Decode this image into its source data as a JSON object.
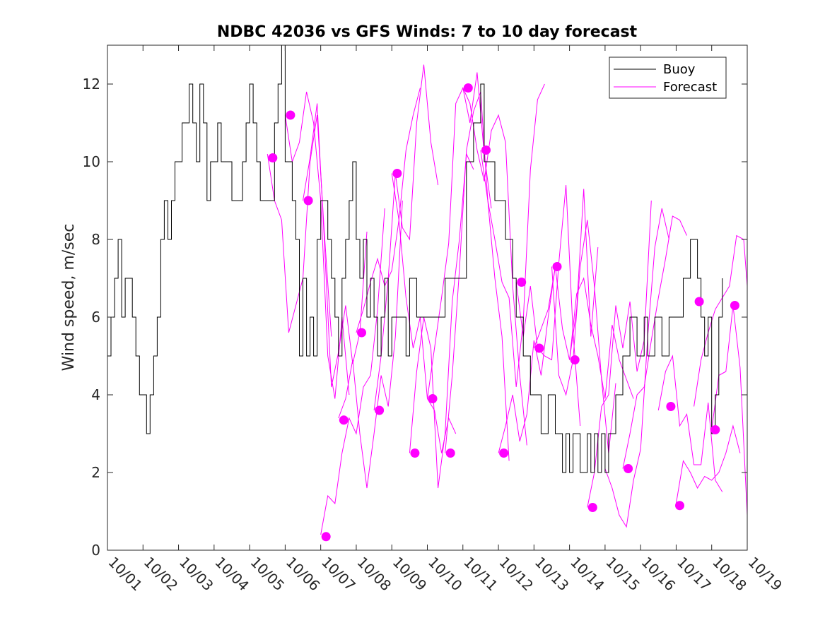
{
  "colors": {
    "buoy": "#000000",
    "forecast": "#ff00ff",
    "axis": "#262626",
    "background": "#ffffff"
  },
  "chart_data": {
    "type": "line",
    "title": "NDBC 42036 vs GFS Winds: 7 to 10 day forecast",
    "xlabel": "",
    "ylabel": "Wind speed, m/sec",
    "xlim": [
      0,
      18
    ],
    "ylim": [
      0,
      13
    ],
    "xticks": [
      0,
      1,
      2,
      3,
      4,
      5,
      6,
      7,
      8,
      9,
      10,
      11,
      12,
      13,
      14,
      15,
      16,
      17,
      18
    ],
    "xticklabels": [
      "10/01",
      "10/02",
      "10/03",
      "10/04",
      "10/05",
      "10/06",
      "10/07",
      "10/08",
      "10/09",
      "10/10",
      "10/11",
      "10/12",
      "10/13",
      "10/14",
      "10/15",
      "10/16",
      "10/17",
      "10/18",
      "10/19"
    ],
    "yticks": [
      0,
      2,
      4,
      6,
      8,
      10,
      12
    ],
    "legend": {
      "position": "top-right",
      "entries": [
        "Buoy",
        "Forecast"
      ]
    },
    "buoy": {
      "name": "Buoy",
      "x": [
        0.0,
        0.1,
        0.2,
        0.3,
        0.4,
        0.5,
        0.6,
        0.7,
        0.8,
        0.9,
        1.0,
        1.1,
        1.2,
        1.3,
        1.4,
        1.5,
        1.6,
        1.7,
        1.8,
        1.9,
        2.0,
        2.1,
        2.2,
        2.3,
        2.4,
        2.5,
        2.6,
        2.7,
        2.8,
        2.9,
        3.0,
        3.1,
        3.2,
        3.3,
        3.4,
        3.5,
        3.6,
        3.7,
        3.8,
        3.9,
        4.0,
        4.1,
        4.2,
        4.3,
        4.4,
        4.5,
        4.6,
        4.7,
        4.8,
        4.9,
        5.0,
        5.1,
        5.2,
        5.3,
        5.4,
        5.5,
        5.6,
        5.7,
        5.8,
        5.9,
        6.0,
        6.1,
        6.2,
        6.3,
        6.4,
        6.5,
        6.6,
        6.7,
        6.8,
        6.9,
        7.0,
        7.1,
        7.2,
        7.3,
        7.4,
        7.5,
        7.6,
        7.7,
        7.8,
        7.9,
        8.0,
        8.1,
        8.2,
        8.3,
        8.4,
        8.5,
        8.6,
        8.7,
        8.8,
        8.9,
        9.0,
        9.5,
        10.0,
        10.1,
        10.2,
        10.3,
        10.4,
        10.5,
        10.6,
        10.7,
        10.8,
        10.9,
        11.0,
        11.1,
        11.2,
        11.3,
        11.4,
        11.5,
        11.6,
        11.7,
        11.8,
        11.9,
        12.0,
        12.1,
        12.2,
        12.3,
        12.4,
        12.5,
        12.6,
        12.7,
        12.8,
        12.9,
        13.0,
        13.1,
        13.2,
        13.3,
        13.4,
        13.5,
        13.6,
        13.7,
        13.8,
        13.9,
        14.0,
        14.1,
        14.2,
        14.3,
        14.4,
        14.5,
        14.6,
        14.7,
        14.8,
        14.9,
        15.0,
        15.1,
        15.2,
        15.3,
        15.4,
        15.5,
        15.6,
        15.7,
        15.8,
        15.9,
        16.0,
        16.1,
        16.2,
        16.3,
        16.4,
        16.5,
        16.6,
        16.7,
        16.8,
        16.9,
        17.0,
        17.1,
        17.2,
        17.3
      ],
      "values": [
        5,
        6,
        7,
        8,
        6,
        7,
        7,
        6,
        5,
        4,
        4,
        3,
        4,
        5,
        6,
        8,
        9,
        8,
        9,
        10,
        10,
        11,
        11,
        12,
        11,
        10,
        12,
        11,
        9,
        10,
        10,
        11,
        10,
        10,
        10,
        9,
        9,
        9,
        10,
        11,
        12,
        11,
        10,
        9,
        9,
        9,
        9,
        11,
        12,
        13,
        10,
        10,
        9,
        8,
        5,
        7,
        5,
        6,
        5,
        8,
        9,
        9,
        8,
        7,
        6,
        5,
        7,
        8,
        9,
        10,
        8,
        7,
        8,
        6,
        7,
        6,
        5,
        6,
        7,
        5,
        6,
        6,
        6,
        6,
        5,
        7,
        7,
        6,
        6,
        6,
        6,
        7,
        7,
        10,
        10,
        11,
        11,
        12,
        10,
        10,
        10,
        9,
        9,
        9,
        8,
        8,
        7,
        6,
        6,
        5,
        5,
        4,
        4,
        4,
        3,
        3,
        4,
        4,
        3,
        3,
        2,
        3,
        2,
        3,
        3,
        2,
        2,
        3,
        2,
        3,
        2,
        3,
        2,
        3,
        3,
        4,
        4,
        5,
        5,
        6,
        6,
        5,
        5,
        6,
        5,
        5,
        6,
        6,
        5,
        5,
        6,
        6,
        6,
        6,
        7,
        7,
        8,
        8,
        7,
        6,
        5,
        6,
        3,
        4,
        6,
        7
      ]
    },
    "forecast_lines": [
      {
        "name": "Forecast",
        "x": [
          4.5,
          4.7,
          4.9,
          5.1,
          5.3,
          5.5,
          5.7,
          5.9,
          6.1,
          6.3
        ],
        "values": [
          10.2,
          9.0,
          8.5,
          5.6,
          6.3,
          7.0,
          10.0,
          11.2,
          8.2,
          5.5
        ]
      },
      {
        "name": "Forecast",
        "x": [
          5.0,
          5.2,
          5.4,
          5.6,
          5.8,
          6.0,
          6.2,
          6.4,
          6.6,
          6.8
        ],
        "values": [
          11.2,
          10.0,
          10.5,
          11.8,
          11.0,
          9.0,
          5.0,
          3.9,
          6.0,
          4.0
        ]
      },
      {
        "name": "Forecast",
        "x": [
          5.5,
          5.7,
          5.9,
          6.1,
          6.3,
          6.5,
          6.7,
          6.9,
          7.1,
          7.3
        ],
        "values": [
          9.0,
          10.1,
          11.5,
          8.0,
          4.2,
          5.1,
          6.3,
          4.8,
          5.6,
          8.2
        ]
      },
      {
        "name": "Forecast",
        "x": [
          6.0,
          6.2,
          6.4,
          6.6,
          6.8,
          7.0,
          7.2,
          7.4,
          7.6,
          7.8
        ],
        "values": [
          0.4,
          1.4,
          1.2,
          2.5,
          3.4,
          3.0,
          4.2,
          4.5,
          6.2,
          8.8
        ]
      },
      {
        "name": "Forecast",
        "x": [
          6.5,
          6.7,
          6.9,
          7.1,
          7.3,
          7.5,
          7.7,
          7.9,
          8.1,
          8.3
        ],
        "values": [
          3.4,
          3.9,
          4.9,
          3.0,
          1.6,
          3.0,
          4.5,
          3.7,
          5.5,
          9.0
        ]
      },
      {
        "name": "Forecast",
        "x": [
          7.0,
          7.2,
          7.4,
          7.6,
          7.8,
          8.0,
          8.2,
          8.4,
          8.6,
          8.8
        ],
        "values": [
          5.6,
          6.2,
          6.9,
          7.5,
          6.8,
          7.2,
          8.5,
          10.3,
          11.2,
          11.9
        ]
      },
      {
        "name": "Forecast",
        "x": [
          7.5,
          7.7,
          7.9,
          8.1,
          8.3,
          8.5,
          8.7,
          8.9,
          9.1,
          9.3
        ],
        "values": [
          3.6,
          5.0,
          7.0,
          9.7,
          8.3,
          8.0,
          11.0,
          12.5,
          10.5,
          9.4
        ]
      },
      {
        "name": "Forecast",
        "x": [
          8.0,
          8.2,
          8.4,
          8.6,
          8.8,
          9.0,
          9.2,
          9.4,
          9.6,
          9.8
        ],
        "values": [
          9.7,
          8.5,
          6.5,
          5.2,
          6.0,
          3.9,
          3.6,
          2.5,
          3.4,
          3.0
        ]
      },
      {
        "name": "Forecast",
        "x": [
          8.5,
          8.7,
          8.9,
          9.1,
          9.3,
          9.5,
          9.7,
          9.9,
          10.1,
          10.3
        ],
        "values": [
          2.5,
          4.6,
          6.0,
          5.2,
          1.6,
          3.0,
          6.4,
          8.0,
          10.2,
          9.8
        ]
      },
      {
        "name": "Forecast",
        "x": [
          9.0,
          9.2,
          9.4,
          9.6,
          9.8,
          10.0,
          10.2,
          10.4,
          10.6,
          10.8
        ],
        "values": [
          3.9,
          5.2,
          6.5,
          7.9,
          11.5,
          11.9,
          11.0,
          12.3,
          10.2,
          8.8
        ]
      },
      {
        "name": "Forecast",
        "x": [
          9.5,
          9.7,
          9.9,
          10.1,
          10.3,
          10.5,
          10.7,
          10.9,
          11.1,
          11.3
        ],
        "values": [
          2.5,
          4.5,
          7.2,
          10.3,
          11.3,
          11.8,
          9.0,
          7.0,
          5.5,
          2.3
        ]
      },
      {
        "name": "Forecast",
        "x": [
          10.0,
          10.2,
          10.4,
          10.6,
          10.8,
          11.0,
          11.2,
          11.4,
          11.6,
          11.8
        ],
        "values": [
          11.9,
          11.5,
          10.3,
          9.5,
          10.8,
          11.2,
          10.5,
          6.8,
          4.5,
          2.7
        ]
      },
      {
        "name": "Forecast",
        "x": [
          10.5,
          10.7,
          10.9,
          11.1,
          11.3,
          11.5,
          11.7,
          11.9,
          12.1,
          12.3
        ],
        "values": [
          10.3,
          9.0,
          8.0,
          6.9,
          6.5,
          4.2,
          5.9,
          9.8,
          11.6,
          12.0
        ]
      },
      {
        "name": "Forecast",
        "x": [
          11.0,
          11.2,
          11.4,
          11.6,
          11.8,
          12.0,
          12.2,
          12.4,
          12.6
        ],
        "values": [
          2.5,
          3.2,
          4.0,
          2.8,
          3.5,
          5.4,
          4.5,
          6.0,
          7.3
        ]
      },
      {
        "name": "Forecast",
        "x": [
          11.5,
          11.7,
          11.9,
          12.1,
          12.3,
          12.5,
          12.7,
          12.9,
          13.1,
          13.3
        ],
        "values": [
          6.9,
          5.5,
          6.8,
          5.2,
          5.0,
          4.9,
          7.4,
          9.4,
          5.6,
          3.2
        ]
      },
      {
        "name": "Forecast",
        "x": [
          12.0,
          12.2,
          12.4,
          12.6,
          12.8,
          13.0,
          13.2,
          13.4,
          13.6,
          13.8
        ],
        "values": [
          5.2,
          5.7,
          6.2,
          7.3,
          5.7,
          4.9,
          6.2,
          9.3,
          5.5,
          7.8
        ]
      },
      {
        "name": "Forecast",
        "x": [
          12.5,
          12.7,
          12.9,
          13.1,
          13.3,
          13.5,
          13.7,
          13.9,
          14.1,
          14.3
        ],
        "values": [
          7.3,
          4.5,
          4.0,
          4.9,
          7.3,
          8.5,
          6.8,
          4.4,
          2.5,
          4.3
        ]
      },
      {
        "name": "Forecast",
        "x": [
          13.0,
          13.2,
          13.4,
          13.6,
          13.8,
          14.0,
          14.2,
          14.4,
          14.6,
          14.8
        ],
        "values": [
          4.9,
          6.6,
          7.0,
          5.8,
          5.0,
          3.9,
          5.8,
          4.9,
          4.4,
          3.9
        ]
      },
      {
        "name": "Forecast",
        "x": [
          13.5,
          13.7,
          13.9,
          14.1,
          14.3,
          14.5,
          14.7,
          14.9,
          15.1,
          15.3
        ],
        "values": [
          1.1,
          2.0,
          3.7,
          4.0,
          6.3,
          5.2,
          6.4,
          4.6,
          5.4,
          9.0
        ]
      },
      {
        "name": "Forecast",
        "x": [
          14.0,
          14.2,
          14.4,
          14.6,
          14.8,
          15.0,
          15.2,
          15.4,
          15.6,
          15.8
        ],
        "values": [
          2.1,
          1.6,
          0.9,
          0.6,
          1.8,
          2.6,
          5.5,
          7.8,
          8.8,
          8.0
        ]
      },
      {
        "name": "Forecast",
        "x": [
          14.5,
          14.7,
          14.9,
          15.1,
          15.3,
          15.5,
          15.7,
          15.9,
          16.1,
          16.3
        ],
        "values": [
          2.1,
          3.0,
          4.0,
          4.2,
          5.4,
          6.5,
          7.5,
          8.6,
          8.5,
          8.1
        ]
      },
      {
        "name": "Forecast",
        "x": [
          15.5,
          15.7,
          15.9,
          16.1,
          16.3,
          16.5,
          16.7,
          16.9,
          17.1,
          17.3
        ],
        "values": [
          3.6,
          4.6,
          5.0,
          3.2,
          3.5,
          2.2,
          2.2,
          3.8,
          1.8,
          1.5
        ]
      },
      {
        "name": "Forecast",
        "x": [
          16.0,
          16.2,
          16.4,
          16.6,
          16.8,
          17.0,
          17.2,
          17.4,
          17.6,
          17.8
        ],
        "values": [
          1.2,
          2.3,
          2.0,
          1.6,
          1.9,
          1.8,
          2.0,
          2.5,
          3.2,
          2.5
        ]
      },
      {
        "name": "Forecast",
        "x": [
          16.5,
          16.7,
          16.9,
          17.1,
          17.3,
          17.5,
          17.7,
          17.9,
          18.0
        ],
        "values": [
          3.7,
          4.9,
          5.6,
          6.2,
          6.5,
          6.8,
          8.1,
          8.0,
          6.8
        ]
      },
      {
        "name": "Forecast",
        "x": [
          17.0,
          17.2,
          17.4,
          17.6,
          17.8,
          18.0
        ],
        "values": [
          3.1,
          4.5,
          4.6,
          6.3,
          4.7,
          0.9
        ]
      }
    ],
    "forecast_points": {
      "x": [
        4.65,
        5.15,
        5.65,
        6.15,
        6.65,
        7.15,
        7.65,
        8.15,
        8.65,
        9.15,
        9.65,
        10.15,
        10.65,
        11.15,
        11.65,
        12.15,
        12.65,
        13.15,
        13.65,
        14.65,
        15.85,
        16.1,
        16.65,
        17.1,
        17.65
      ],
      "values": [
        10.1,
        11.2,
        9.0,
        0.35,
        3.35,
        5.6,
        3.6,
        9.7,
        2.5,
        3.9,
        2.5,
        11.9,
        10.3,
        2.5,
        6.9,
        5.2,
        7.3,
        4.9,
        1.1,
        2.1,
        3.7,
        1.15,
        6.4,
        3.1,
        6.3
      ]
    }
  }
}
